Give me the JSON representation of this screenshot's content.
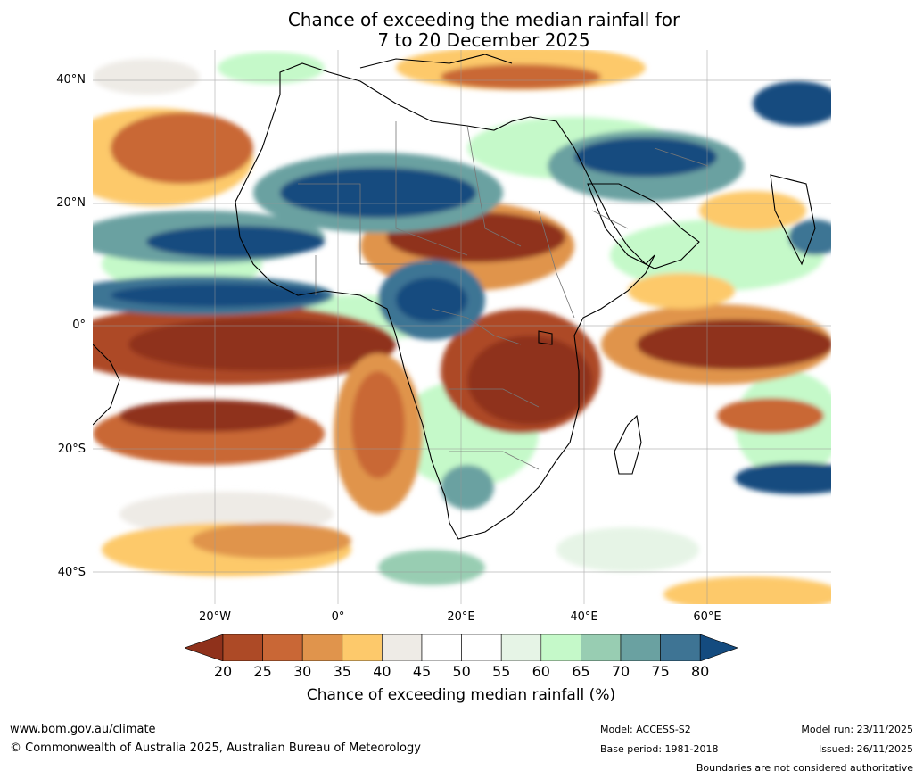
{
  "title": {
    "line1": "Chance of exceeding the median rainfall for",
    "line2": "7 to 20 December 2025"
  },
  "map": {
    "lat_labels": [
      "40°N",
      "20°N",
      "0°",
      "20°S",
      "40°S"
    ],
    "lon_labels": [
      "20°W",
      "0°",
      "20°E",
      "40°E",
      "60°E"
    ],
    "regions": [
      {
        "label": "South Atlantic / West Africa coast",
        "category": "20-25"
      },
      {
        "label": "Sahel",
        "category": "20-25"
      },
      {
        "label": "East Africa / Great Lakes",
        "category": "20-25"
      },
      {
        "label": "Indian Ocean south of equator",
        "category": "20-25"
      },
      {
        "label": "Sahara",
        "category": "75-80"
      },
      {
        "label": "Arabian Peninsula / Persian Gulf",
        "category": "75-80"
      },
      {
        "label": "Gulf of Guinea",
        "category": "75-80"
      },
      {
        "label": "Congo Basin",
        "category": "75-80"
      }
    ]
  },
  "colorbar": {
    "ticks": [
      "20",
      "25",
      "30",
      "35",
      "40",
      "45",
      "50",
      "55",
      "60",
      "65",
      "70",
      "75",
      "80"
    ],
    "colors": [
      "#8f311b",
      "#ad4a26",
      "#c96736",
      "#e0944c",
      "#fdc96b",
      "#eeebe6",
      "#ffffff",
      "#ffffff",
      "#e6f4e6",
      "#c5f9c9",
      "#98cdb2",
      "#6aa1a1",
      "#3e7494",
      "#144b7f"
    ],
    "label": "Chance of exceeding median rainfall (%)"
  },
  "footer": {
    "url": "www.bom.gov.au/climate",
    "copyright": "© Commonwealth of Australia 2025, Australian Bureau of Meteorology",
    "model": "Model: ACCESS-S2",
    "base_period": "Base period: 1981-2018",
    "model_run": "Model run: 23/11/2025",
    "issued": "Issued: 26/11/2025",
    "disclaimer": "Boundaries are not considered authoritative"
  }
}
